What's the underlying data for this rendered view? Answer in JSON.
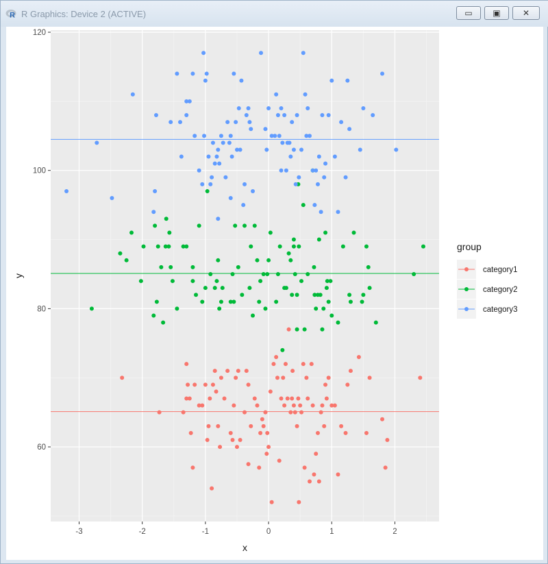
{
  "window": {
    "title": "R Graphics: Device 2 (ACTIVE)",
    "icon": "r-logo-icon",
    "buttons": [
      "minimize-icon",
      "maximize-icon",
      "close-icon"
    ]
  },
  "chart_data": {
    "type": "scatter",
    "title": "",
    "xlabel": "x",
    "ylabel": "y",
    "xlim": [
      -3.45,
      2.7
    ],
    "ylim": [
      49.2,
      120.3
    ],
    "x_ticks": [
      -3,
      -2,
      -1,
      0,
      1,
      2
    ],
    "y_ticks": [
      60,
      80,
      100,
      120
    ],
    "grid": true,
    "legend": {
      "title": "group",
      "placement": "right"
    },
    "hlines": [
      {
        "series": "category1",
        "y": 65.1
      },
      {
        "series": "category2",
        "y": 85.1
      },
      {
        "series": "category3",
        "y": 104.5
      }
    ],
    "series": [
      {
        "name": "category1",
        "color": "#f8766d",
        "points": [
          [
            -2.32,
            70
          ],
          [
            -1.73,
            65
          ],
          [
            -1.35,
            65
          ],
          [
            -1.3,
            67
          ],
          [
            -1.3,
            72
          ],
          [
            -1.28,
            69
          ],
          [
            -1.25,
            67
          ],
          [
            -1.23,
            62
          ],
          [
            -1.2,
            57
          ],
          [
            -1.17,
            69
          ],
          [
            -1.1,
            66
          ],
          [
            -1.05,
            66
          ],
          [
            -1.0,
            69
          ],
          [
            -0.97,
            61
          ],
          [
            -0.95,
            63
          ],
          [
            -0.93,
            67
          ],
          [
            -0.9,
            54
          ],
          [
            -0.88,
            69
          ],
          [
            -0.85,
            71
          ],
          [
            -0.83,
            68
          ],
          [
            -0.8,
            63
          ],
          [
            -0.77,
            60
          ],
          [
            -0.75,
            70
          ],
          [
            -0.7,
            67
          ],
          [
            -0.65,
            71
          ],
          [
            -0.6,
            62
          ],
          [
            -0.57,
            61
          ],
          [
            -0.55,
            66
          ],
          [
            -0.52,
            70
          ],
          [
            -0.5,
            60
          ],
          [
            -0.48,
            71
          ],
          [
            -0.45,
            61
          ],
          [
            -0.38,
            65
          ],
          [
            -0.35,
            71
          ],
          [
            -0.32,
            69
          ],
          [
            -0.28,
            63
          ],
          [
            -0.22,
            67
          ],
          [
            -0.18,
            66
          ],
          [
            -0.15,
            57
          ],
          [
            -0.13,
            62
          ],
          [
            -0.1,
            64
          ],
          [
            -0.08,
            63
          ],
          [
            -0.05,
            65
          ],
          [
            -0.03,
            59
          ],
          [
            -0.02,
            62
          ],
          [
            0.0,
            60
          ],
          [
            0.03,
            68
          ],
          [
            0.05,
            52
          ],
          [
            0.08,
            72
          ],
          [
            0.12,
            73
          ],
          [
            0.14,
            70
          ],
          [
            0.17,
            58
          ],
          [
            0.2,
            67
          ],
          [
            0.23,
            70
          ],
          [
            0.25,
            66
          ],
          [
            0.27,
            72
          ],
          [
            0.3,
            67
          ],
          [
            0.32,
            77
          ],
          [
            0.35,
            65
          ],
          [
            0.37,
            67
          ],
          [
            0.38,
            71
          ],
          [
            0.4,
            66
          ],
          [
            0.42,
            65
          ],
          [
            0.45,
            63
          ],
          [
            0.47,
            67
          ],
          [
            0.48,
            52
          ],
          [
            0.5,
            66
          ],
          [
            0.52,
            65
          ],
          [
            0.55,
            72
          ],
          [
            0.57,
            57
          ],
          [
            0.6,
            70
          ],
          [
            0.62,
            67
          ],
          [
            0.65,
            55
          ],
          [
            0.68,
            72
          ],
          [
            0.7,
            66
          ],
          [
            0.72,
            56
          ],
          [
            0.75,
            59
          ],
          [
            0.78,
            62
          ],
          [
            0.8,
            55
          ],
          [
            0.83,
            65
          ],
          [
            0.85,
            66
          ],
          [
            0.88,
            63
          ],
          [
            0.9,
            69
          ],
          [
            0.92,
            67
          ],
          [
            0.95,
            70
          ],
          [
            1.0,
            66
          ],
          [
            1.05,
            66
          ],
          [
            1.1,
            56
          ],
          [
            1.15,
            63
          ],
          [
            1.22,
            62
          ],
          [
            1.25,
            69
          ],
          [
            1.3,
            71
          ],
          [
            1.43,
            73
          ],
          [
            1.55,
            62
          ],
          [
            1.6,
            70
          ],
          [
            1.8,
            64
          ],
          [
            1.85,
            57
          ],
          [
            1.88,
            61
          ],
          [
            2.4,
            70
          ],
          [
            -0.32,
            57.5
          ]
        ]
      },
      {
        "name": "category2",
        "color": "#00ba38",
        "points": [
          [
            -2.8,
            80
          ],
          [
            -2.35,
            88
          ],
          [
            -2.25,
            87
          ],
          [
            -2.17,
            91
          ],
          [
            -2.02,
            84
          ],
          [
            -1.98,
            89
          ],
          [
            -1.82,
            79
          ],
          [
            -1.8,
            92
          ],
          [
            -1.77,
            81
          ],
          [
            -1.75,
            89
          ],
          [
            -1.7,
            86
          ],
          [
            -1.67,
            78
          ],
          [
            -1.63,
            89
          ],
          [
            -1.62,
            93
          ],
          [
            -1.58,
            89
          ],
          [
            -1.57,
            91
          ],
          [
            -1.55,
            86
          ],
          [
            -1.52,
            84
          ],
          [
            -1.45,
            80
          ],
          [
            -1.35,
            89
          ],
          [
            -1.3,
            89
          ],
          [
            -1.2,
            86
          ],
          [
            -1.2,
            84
          ],
          [
            -1.15,
            82
          ],
          [
            -1.1,
            92
          ],
          [
            -1.05,
            81
          ],
          [
            -1.0,
            83
          ],
          [
            -0.97,
            97
          ],
          [
            -0.92,
            85
          ],
          [
            -0.85,
            83
          ],
          [
            -0.82,
            84
          ],
          [
            -0.8,
            87
          ],
          [
            -0.78,
            80
          ],
          [
            -0.75,
            81
          ],
          [
            -0.73,
            83
          ],
          [
            -0.6,
            81
          ],
          [
            -0.57,
            85
          ],
          [
            -0.55,
            81
          ],
          [
            -0.53,
            92
          ],
          [
            -0.48,
            86
          ],
          [
            -0.42,
            82
          ],
          [
            -0.38,
            92
          ],
          [
            -0.3,
            83
          ],
          [
            -0.28,
            89
          ],
          [
            -0.25,
            79
          ],
          [
            -0.22,
            92
          ],
          [
            -0.18,
            87
          ],
          [
            -0.15,
            81
          ],
          [
            -0.13,
            84
          ],
          [
            -0.08,
            85
          ],
          [
            -0.05,
            80
          ],
          [
            -0.02,
            85
          ],
          [
            0.0,
            87
          ],
          [
            0.03,
            91
          ],
          [
            0.12,
            81
          ],
          [
            0.15,
            85
          ],
          [
            0.18,
            89
          ],
          [
            0.22,
            74
          ],
          [
            0.25,
            83
          ],
          [
            0.28,
            83
          ],
          [
            0.32,
            88
          ],
          [
            0.35,
            87
          ],
          [
            0.37,
            82
          ],
          [
            0.4,
            89
          ],
          [
            0.42,
            85
          ],
          [
            0.45,
            82
          ],
          [
            0.47,
            98
          ],
          [
            0.45,
            77
          ],
          [
            0.52,
            84
          ],
          [
            0.55,
            95
          ],
          [
            0.57,
            77
          ],
          [
            0.62,
            85
          ],
          [
            0.7,
            100
          ],
          [
            0.72,
            86
          ],
          [
            0.73,
            82
          ],
          [
            0.75,
            80
          ],
          [
            0.78,
            82
          ],
          [
            0.8,
            90
          ],
          [
            0.82,
            82
          ],
          [
            0.85,
            77
          ],
          [
            0.87,
            80
          ],
          [
            0.9,
            91
          ],
          [
            0.92,
            83
          ],
          [
            0.93,
            84
          ],
          [
            0.95,
            81
          ],
          [
            0.98,
            84
          ],
          [
            1.0,
            79
          ],
          [
            1.1,
            78
          ],
          [
            1.18,
            89
          ],
          [
            1.28,
            82
          ],
          [
            1.3,
            81
          ],
          [
            1.35,
            91
          ],
          [
            1.48,
            81
          ],
          [
            1.5,
            82
          ],
          [
            1.55,
            89
          ],
          [
            1.58,
            86
          ],
          [
            1.6,
            83
          ],
          [
            1.7,
            78
          ],
          [
            2.3,
            85
          ],
          [
            2.45,
            89
          ],
          [
            0.48,
            89
          ],
          [
            0.4,
            90
          ]
        ]
      },
      {
        "name": "category3",
        "color": "#619cff",
        "points": [
          [
            -3.2,
            97
          ],
          [
            -2.72,
            104
          ],
          [
            -2.48,
            96
          ],
          [
            -2.15,
            111
          ],
          [
            -1.82,
            94
          ],
          [
            -1.8,
            97
          ],
          [
            -1.78,
            108
          ],
          [
            -1.55,
            107
          ],
          [
            -1.45,
            114
          ],
          [
            -1.4,
            107
          ],
          [
            -1.38,
            102
          ],
          [
            -1.3,
            110
          ],
          [
            -1.3,
            108
          ],
          [
            -1.25,
            110
          ],
          [
            -1.2,
            114
          ],
          [
            -1.17,
            105
          ],
          [
            -1.1,
            100
          ],
          [
            -1.05,
            98
          ],
          [
            -1.03,
            117
          ],
          [
            -1.02,
            105
          ],
          [
            -1.0,
            113
          ],
          [
            -0.98,
            114
          ],
          [
            -0.95,
            102
          ],
          [
            -0.92,
            98
          ],
          [
            -0.9,
            99
          ],
          [
            -0.88,
            104
          ],
          [
            -0.85,
            101
          ],
          [
            -0.82,
            102
          ],
          [
            -0.8,
            103
          ],
          [
            -0.78,
            101
          ],
          [
            -0.75,
            105
          ],
          [
            -0.72,
            104
          ],
          [
            -0.68,
            99
          ],
          [
            -0.65,
            107
          ],
          [
            -0.62,
            104
          ],
          [
            -0.6,
            105
          ],
          [
            -0.58,
            102
          ],
          [
            -0.55,
            114
          ],
          [
            -0.52,
            107
          ],
          [
            -0.5,
            103
          ],
          [
            -0.47,
            109
          ],
          [
            -0.45,
            103
          ],
          [
            -0.43,
            113
          ],
          [
            -0.4,
            95
          ],
          [
            -0.38,
            98
          ],
          [
            -0.35,
            108
          ],
          [
            -0.32,
            109
          ],
          [
            -0.3,
            107
          ],
          [
            -0.25,
            97
          ],
          [
            -0.12,
            117
          ],
          [
            -0.05,
            106
          ],
          [
            -0.03,
            103
          ],
          [
            0.0,
            109
          ],
          [
            0.05,
            105
          ],
          [
            0.1,
            105
          ],
          [
            0.12,
            111
          ],
          [
            0.15,
            108
          ],
          [
            0.17,
            105
          ],
          [
            0.2,
            109
          ],
          [
            0.22,
            104
          ],
          [
            0.25,
            108
          ],
          [
            0.28,
            100
          ],
          [
            0.3,
            104
          ],
          [
            0.33,
            104
          ],
          [
            0.35,
            102
          ],
          [
            0.37,
            107
          ],
          [
            0.4,
            103
          ],
          [
            0.43,
            98
          ],
          [
            0.45,
            108
          ],
          [
            0.48,
            99
          ],
          [
            0.52,
            103
          ],
          [
            0.55,
            117
          ],
          [
            0.58,
            111
          ],
          [
            0.6,
            105
          ],
          [
            0.62,
            109
          ],
          [
            0.65,
            105
          ],
          [
            0.7,
            100
          ],
          [
            0.73,
            95
          ],
          [
            0.75,
            100
          ],
          [
            0.78,
            98
          ],
          [
            0.8,
            102
          ],
          [
            0.83,
            94
          ],
          [
            0.85,
            108
          ],
          [
            0.88,
            99
          ],
          [
            0.9,
            101
          ],
          [
            0.95,
            108
          ],
          [
            1.0,
            113
          ],
          [
            1.05,
            102
          ],
          [
            1.1,
            94
          ],
          [
            1.15,
            107
          ],
          [
            1.22,
            99
          ],
          [
            1.25,
            113
          ],
          [
            1.28,
            106
          ],
          [
            1.45,
            103
          ],
          [
            1.5,
            109
          ],
          [
            1.65,
            108
          ],
          [
            1.8,
            114
          ],
          [
            2.02,
            103
          ],
          [
            -0.8,
            93
          ],
          [
            0.2,
            100
          ],
          [
            -0.28,
            106
          ],
          [
            -0.6,
            96
          ]
        ]
      }
    ]
  }
}
